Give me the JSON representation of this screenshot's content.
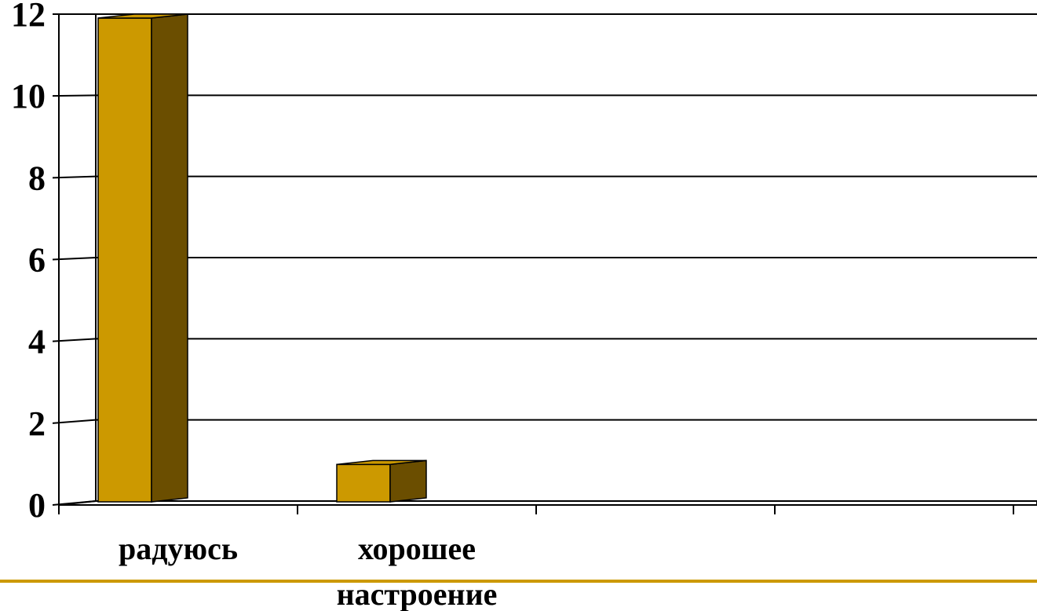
{
  "chart_data": {
    "type": "bar",
    "categories": [
      "радуюсь",
      "хорошее настроение",
      "",
      ""
    ],
    "category_label_lines": [
      [
        "радуюсь"
      ],
      [
        "хорошее",
        "настроение"
      ],
      [],
      []
    ],
    "values": [
      12,
      1,
      0,
      0
    ],
    "title": "",
    "xlabel": "",
    "ylabel": "",
    "ylim": [
      0,
      12
    ],
    "yticks": [
      0,
      2,
      4,
      6,
      8,
      10,
      12
    ],
    "grid": true,
    "three_d": true,
    "colors": {
      "bar_front": "#cc9900",
      "bar_side": "#6b4e00",
      "bar_top": "#cc9900",
      "grid": "#000000",
      "accent_line": "#cc9900"
    }
  }
}
